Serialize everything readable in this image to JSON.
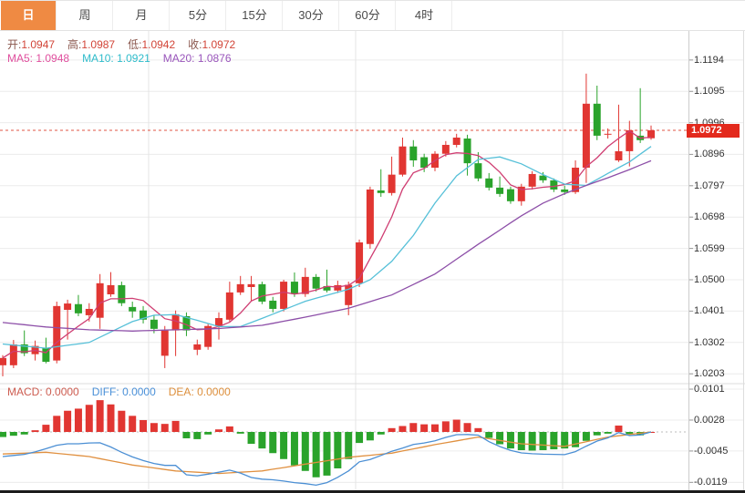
{
  "tabs": {
    "items": [
      {
        "label": "日",
        "active": true
      },
      {
        "label": "周",
        "active": false
      },
      {
        "label": "月",
        "active": false
      },
      {
        "label": "5分",
        "active": false
      },
      {
        "label": "15分",
        "active": false
      },
      {
        "label": "30分",
        "active": false
      },
      {
        "label": "60分",
        "active": false
      },
      {
        "label": "4时",
        "active": false
      }
    ]
  },
  "ohlc_bar": {
    "open_label": "开:",
    "open": "1.0947",
    "high_label": "高:",
    "high": "1.0987",
    "low_label": "低:",
    "low": "1.0942",
    "close_label": "收:",
    "close": "1.0972"
  },
  "ma_bar": {
    "ma5_label": "MA5:",
    "ma5": "1.0948",
    "ma10_label": "MA10:",
    "ma10": "1.0921",
    "ma20_label": "MA20:",
    "ma20": "1.0876"
  },
  "macd_bar": {
    "macd_label": "MACD:",
    "macd": "0.0000",
    "diff_label": "DIFF:",
    "diff": "0.0000",
    "dea_label": "DEA:",
    "dea": "0.0000"
  },
  "price_tag": "1.0972",
  "colors": {
    "active_tab": "#ef8a43",
    "up": "#e13632",
    "down": "#2aa32b",
    "ma5": "#cf3d72",
    "ma10": "#56c0d8",
    "ma20": "#8d4fa8",
    "dif": "#4b8fd4",
    "dea": "#e09040",
    "ohlc_label": "#8a564c",
    "ohlc_value": "#d24538",
    "ma5_text": "#e04f9e",
    "ma10_text": "#2fbccb",
    "ma20_text": "#9955bb",
    "macd_text": "#cd5c50",
    "diff_text": "#4a90d8",
    "dea_text": "#dd8f3c",
    "grid": "#ececec",
    "vgrid": "#e4e4e4",
    "axis_border": "#cccccc",
    "dotted_price": "#e05545",
    "tag_bg": "#e3291c"
  },
  "chart_data": {
    "main": {
      "type": "candlestick",
      "current_price": 1.0972,
      "y_ticks": [
        "1.1194",
        "1.1095",
        "1.0996",
        "1.0896",
        "1.0797",
        "1.0698",
        "1.0599",
        "1.0500",
        "1.0401",
        "1.0302",
        "1.0203"
      ],
      "ylim": [
        1.0175,
        1.123
      ],
      "candles": [
        [
          1.023,
          1.0262,
          1.0195,
          1.0253
        ],
        [
          1.023,
          1.031,
          1.0221,
          1.0296
        ],
        [
          1.0296,
          1.034,
          1.0259,
          1.0268
        ],
        [
          1.0265,
          1.0308,
          1.0245,
          1.0291
        ],
        [
          1.0285,
          1.0317,
          1.0236,
          1.0241
        ],
        [
          1.0245,
          1.0431,
          1.0236,
          1.0417
        ],
        [
          1.0405,
          1.0437,
          1.0311,
          1.0425
        ],
        [
          1.0423,
          1.0452,
          1.0385,
          1.0394
        ],
        [
          1.0388,
          1.0426,
          1.0368,
          1.0408
        ],
        [
          1.038,
          1.0518,
          1.0345,
          1.0489
        ],
        [
          1.0454,
          1.0524,
          1.0446,
          1.0483
        ],
        [
          1.0483,
          1.0494,
          1.0417,
          1.0426
        ],
        [
          1.0414,
          1.0431,
          1.038,
          1.04
        ],
        [
          1.0403,
          1.0417,
          1.0362,
          1.0374
        ],
        [
          1.0374,
          1.0388,
          1.0331,
          1.0345
        ],
        [
          1.026,
          1.0354,
          1.0221,
          1.034
        ],
        [
          1.034,
          1.0403,
          1.0259,
          1.0391
        ],
        [
          1.0385,
          1.0397,
          1.0322,
          1.034
        ],
        [
          1.0279,
          1.0311,
          1.0262,
          1.0296
        ],
        [
          1.0288,
          1.036,
          1.0279,
          1.0354
        ],
        [
          1.0354,
          1.0397,
          1.0311,
          1.0379
        ],
        [
          1.0374,
          1.0494,
          1.0368,
          1.046
        ],
        [
          1.046,
          1.0512,
          1.0452,
          1.0486
        ],
        [
          1.0477,
          1.0512,
          1.0431,
          1.0486
        ],
        [
          1.0486,
          1.0494,
          1.0423,
          1.0431
        ],
        [
          1.0434,
          1.0446,
          1.0397,
          1.0408
        ],
        [
          1.0408,
          1.05,
          1.04,
          1.0494
        ],
        [
          1.0494,
          1.0523,
          1.0446,
          1.0455
        ],
        [
          1.0455,
          1.0538,
          1.0446,
          1.0509
        ],
        [
          1.0509,
          1.0518,
          1.0463,
          1.0472
        ],
        [
          1.048,
          1.0532,
          1.046,
          1.0466
        ],
        [
          1.0466,
          1.0497,
          1.0458,
          1.0483
        ],
        [
          1.042,
          1.0494,
          1.0388,
          1.0484
        ],
        [
          1.0489,
          1.0627,
          1.0477,
          1.0618
        ],
        [
          1.0613,
          1.0794,
          1.0598,
          1.0785
        ],
        [
          1.0782,
          1.0849,
          1.0762,
          1.0774
        ],
        [
          1.0774,
          1.0889,
          1.0766,
          1.0832
        ],
        [
          1.0832,
          1.0949,
          1.0826,
          1.0921
        ],
        [
          1.0921,
          1.0941,
          1.0857,
          1.0877
        ],
        [
          1.0887,
          1.0898,
          1.084,
          1.0854
        ],
        [
          1.0854,
          1.0906,
          1.0843,
          1.0898
        ],
        [
          1.0898,
          1.0938,
          1.0889,
          1.0926
        ],
        [
          1.0926,
          1.0961,
          1.0918,
          1.0949
        ],
        [
          1.0946,
          1.0958,
          1.0829,
          1.0868
        ],
        [
          1.0868,
          1.0903,
          1.0811,
          1.082
        ],
        [
          1.082,
          1.0837,
          1.0782,
          1.0791
        ],
        [
          1.0791,
          1.0826,
          1.0762,
          1.0771
        ],
        [
          1.0786,
          1.0794,
          1.074,
          1.0748
        ],
        [
          1.0748,
          1.0803,
          1.0734,
          1.0794
        ],
        [
          1.0794,
          1.0843,
          1.0785,
          1.0834
        ],
        [
          1.0829,
          1.084,
          1.0806,
          1.0814
        ],
        [
          1.0814,
          1.082,
          1.0777,
          1.0785
        ],
        [
          1.0785,
          1.0797,
          1.0768,
          1.0777
        ],
        [
          1.0777,
          1.0877,
          1.0771,
          1.0854
        ],
        [
          1.0854,
          1.1151,
          1.0806,
          1.1056
        ],
        [
          1.1056,
          1.1113,
          1.0941,
          1.0955
        ],
        [
          1.0961,
          1.0978,
          1.0946,
          1.0961
        ],
        [
          1.0877,
          1.1053,
          1.0872,
          1.0906
        ],
        [
          1.0906,
          1.1002,
          1.0858,
          1.0972
        ],
        [
          1.0955,
          1.1105,
          1.0932,
          1.0941
        ],
        [
          1.0947,
          1.0987,
          1.0942,
          1.0972
        ]
      ],
      "ma10_points": [
        [
          0,
          1.0297
        ],
        [
          4,
          1.0284
        ],
        [
          8,
          1.0302
        ],
        [
          12,
          1.0368
        ],
        [
          14,
          1.0388
        ],
        [
          16,
          1.039
        ],
        [
          18,
          1.0372
        ],
        [
          20,
          1.0352
        ],
        [
          22,
          1.0352
        ],
        [
          24,
          1.0378
        ],
        [
          28,
          1.0432
        ],
        [
          32,
          1.047
        ],
        [
          34,
          1.05
        ],
        [
          36,
          1.0558
        ],
        [
          38,
          1.064
        ],
        [
          40,
          1.0742
        ],
        [
          42,
          1.0828
        ],
        [
          44,
          1.088
        ],
        [
          46,
          1.0888
        ],
        [
          48,
          1.0866
        ],
        [
          50,
          1.0832
        ],
        [
          52,
          1.0802
        ],
        [
          54,
          1.0798
        ],
        [
          56,
          1.0836
        ],
        [
          58,
          1.0872
        ],
        [
          60,
          1.0921
        ]
      ],
      "ma20_points": [
        [
          0,
          1.0365
        ],
        [
          4,
          1.0351
        ],
        [
          8,
          1.0342
        ],
        [
          12,
          1.0338
        ],
        [
          16,
          1.0342
        ],
        [
          20,
          1.0346
        ],
        [
          24,
          1.0356
        ],
        [
          28,
          1.0382
        ],
        [
          32,
          1.041
        ],
        [
          36,
          1.0452
        ],
        [
          40,
          1.0518
        ],
        [
          44,
          1.0612
        ],
        [
          48,
          1.0702
        ],
        [
          50,
          1.0742
        ],
        [
          52,
          1.0772
        ],
        [
          54,
          1.0798
        ],
        [
          56,
          1.0822
        ],
        [
          58,
          1.0848
        ],
        [
          60,
          1.0876
        ]
      ]
    },
    "macd": {
      "type": "bar",
      "y_ticks": [
        "0.0101",
        "0.0028",
        "-0.0045",
        "-0.0119"
      ],
      "histogram_x10000": [
        -12,
        -9,
        -6,
        4,
        17,
        38,
        50,
        55,
        64,
        75,
        65,
        50,
        38,
        28,
        21,
        19,
        26,
        -15,
        -17,
        -6,
        6,
        13,
        -4,
        -28,
        -39,
        -50,
        -64,
        -79,
        -92,
        -107,
        -103,
        -86,
        -64,
        -26,
        -20,
        -6,
        9,
        14,
        21,
        18,
        18,
        25,
        29,
        21,
        9,
        -14,
        -29,
        -39,
        -43,
        -44,
        -43,
        -41,
        -39,
        -36,
        -21,
        -8,
        -4,
        15,
        -5,
        -8,
        0
      ],
      "dea_points_x10000": [
        [
          0,
          -52
        ],
        [
          4,
          -48
        ],
        [
          8,
          -58
        ],
        [
          12,
          -78
        ],
        [
          16,
          -92
        ],
        [
          20,
          -98
        ],
        [
          24,
          -92
        ],
        [
          28,
          -76
        ],
        [
          32,
          -60
        ],
        [
          36,
          -50
        ],
        [
          40,
          -30
        ],
        [
          44,
          -12
        ],
        [
          48,
          -28
        ],
        [
          52,
          -34
        ],
        [
          56,
          -12
        ],
        [
          60,
          0
        ]
      ],
      "note": "DIF = DEA + histogram/2"
    }
  }
}
